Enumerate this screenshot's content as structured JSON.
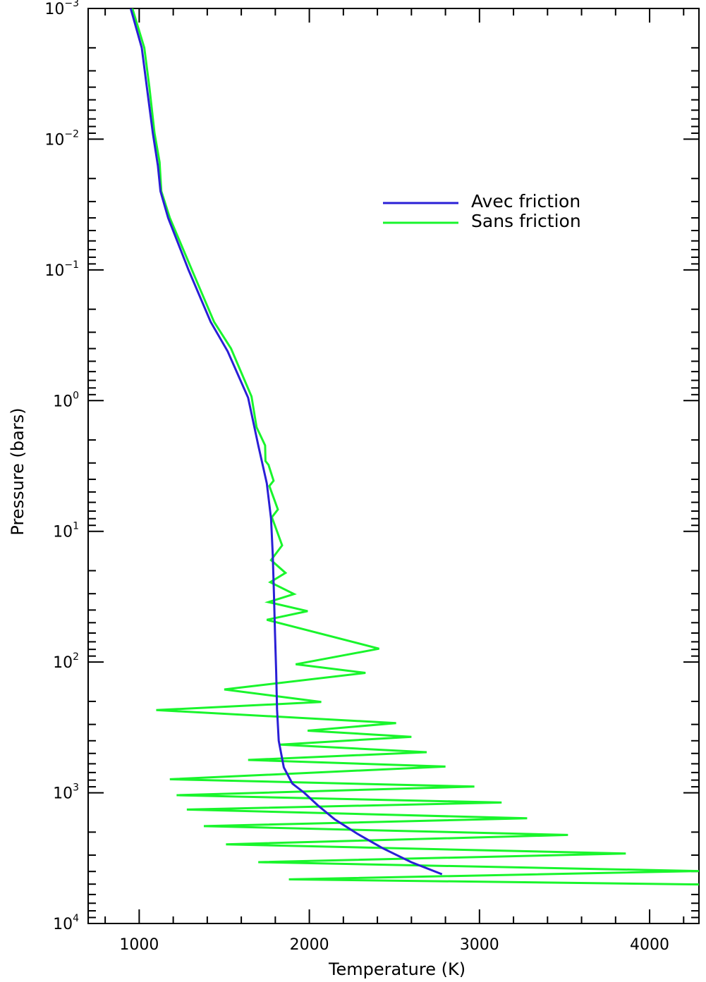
{
  "chart_data": {
    "type": "line",
    "title": "",
    "xlabel": "Temperature (K)",
    "ylabel": "Pressure (bars)",
    "xlim": [
      700,
      4290
    ],
    "ylim": [
      0.001,
      10000
    ],
    "y_scale": "log",
    "y_reversed": true,
    "x_ticks": [
      1000,
      2000,
      3000,
      4000
    ],
    "y_ticks": [
      {
        "mantissa": "10",
        "exp": "−3",
        "value": 0.001
      },
      {
        "mantissa": "10",
        "exp": "−2",
        "value": 0.01
      },
      {
        "mantissa": "10",
        "exp": "−1",
        "value": 0.1
      },
      {
        "mantissa": "10",
        "exp": "0",
        "value": 1
      },
      {
        "mantissa": "10",
        "exp": "1",
        "value": 10
      },
      {
        "mantissa": "10",
        "exp": "2",
        "value": 100
      },
      {
        "mantissa": "10",
        "exp": "3",
        "value": 1000
      },
      {
        "mantissa": "10",
        "exp": "4",
        "value": 10000
      }
    ],
    "grid": false,
    "legend_position": "upper-right",
    "series": [
      {
        "name": "Avec friction",
        "color": "#2a1fd6",
        "points": [
          [
            950,
            0.001
          ],
          [
            1015,
            0.002
          ],
          [
            1045,
            0.004
          ],
          [
            1080,
            0.009
          ],
          [
            1110,
            0.016
          ],
          [
            1125,
            0.025
          ],
          [
            1170,
            0.04
          ],
          [
            1290,
            0.1
          ],
          [
            1420,
            0.25
          ],
          [
            1520,
            0.42
          ],
          [
            1640,
            0.95
          ],
          [
            1700,
            2.2
          ],
          [
            1750,
            4.3
          ],
          [
            1775,
            8
          ],
          [
            1785,
            15
          ],
          [
            1792,
            30
          ],
          [
            1798,
            60
          ],
          [
            1805,
            120
          ],
          [
            1810,
            230
          ],
          [
            1820,
            400
          ],
          [
            1850,
            640
          ],
          [
            1900,
            850
          ],
          [
            1970,
            1000
          ],
          [
            2050,
            1250
          ],
          [
            2150,
            1600
          ],
          [
            2280,
            2050
          ],
          [
            2430,
            2650
          ],
          [
            2600,
            3400
          ],
          [
            2780,
            4200
          ]
        ]
      },
      {
        "name": "Sans friction",
        "color": "#19f52c",
        "points": [
          [
            960,
            0.001
          ],
          [
            1030,
            0.002
          ],
          [
            1060,
            0.004
          ],
          [
            1090,
            0.009
          ],
          [
            1120,
            0.015
          ],
          [
            1130,
            0.025
          ],
          [
            1180,
            0.04
          ],
          [
            1310,
            0.1
          ],
          [
            1440,
            0.25
          ],
          [
            1540,
            0.4
          ],
          [
            1660,
            0.93
          ],
          [
            1690,
            1.6
          ],
          [
            1740,
            2.2
          ],
          [
            1742,
            2.9
          ],
          [
            1760,
            3.1
          ],
          [
            1790,
            4.1
          ],
          [
            1765,
            4.5
          ],
          [
            1815,
            6.8
          ],
          [
            1780,
            7.8
          ],
          [
            1840,
            12.8
          ],
          [
            1775,
            16.6
          ],
          [
            1860,
            20.8
          ],
          [
            1770,
            24.5
          ],
          [
            1910,
            30.2
          ],
          [
            1760,
            34.8
          ],
          [
            1990,
            40.8
          ],
          [
            1750,
            47.5
          ],
          [
            2410,
            79
          ],
          [
            1920,
            104
          ],
          [
            2330,
            121
          ],
          [
            1500,
            162
          ],
          [
            2070,
            202
          ],
          [
            1100,
            233
          ],
          [
            2510,
            293
          ],
          [
            1990,
            335
          ],
          [
            2600,
            373
          ],
          [
            1830,
            428
          ],
          [
            2690,
            489
          ],
          [
            1640,
            561
          ],
          [
            2800,
            630
          ],
          [
            1180,
            788
          ],
          [
            2970,
            897
          ],
          [
            1220,
            1044
          ],
          [
            3130,
            1187
          ],
          [
            1280,
            1344
          ],
          [
            3280,
            1569
          ],
          [
            1380,
            1799
          ],
          [
            3520,
            2102
          ],
          [
            1510,
            2480
          ],
          [
            3860,
            2919
          ],
          [
            1700,
            3393
          ],
          [
            4290,
            3970
          ],
          [
            1880,
            4598
          ],
          [
            4700,
            5100
          ]
        ]
      }
    ]
  }
}
